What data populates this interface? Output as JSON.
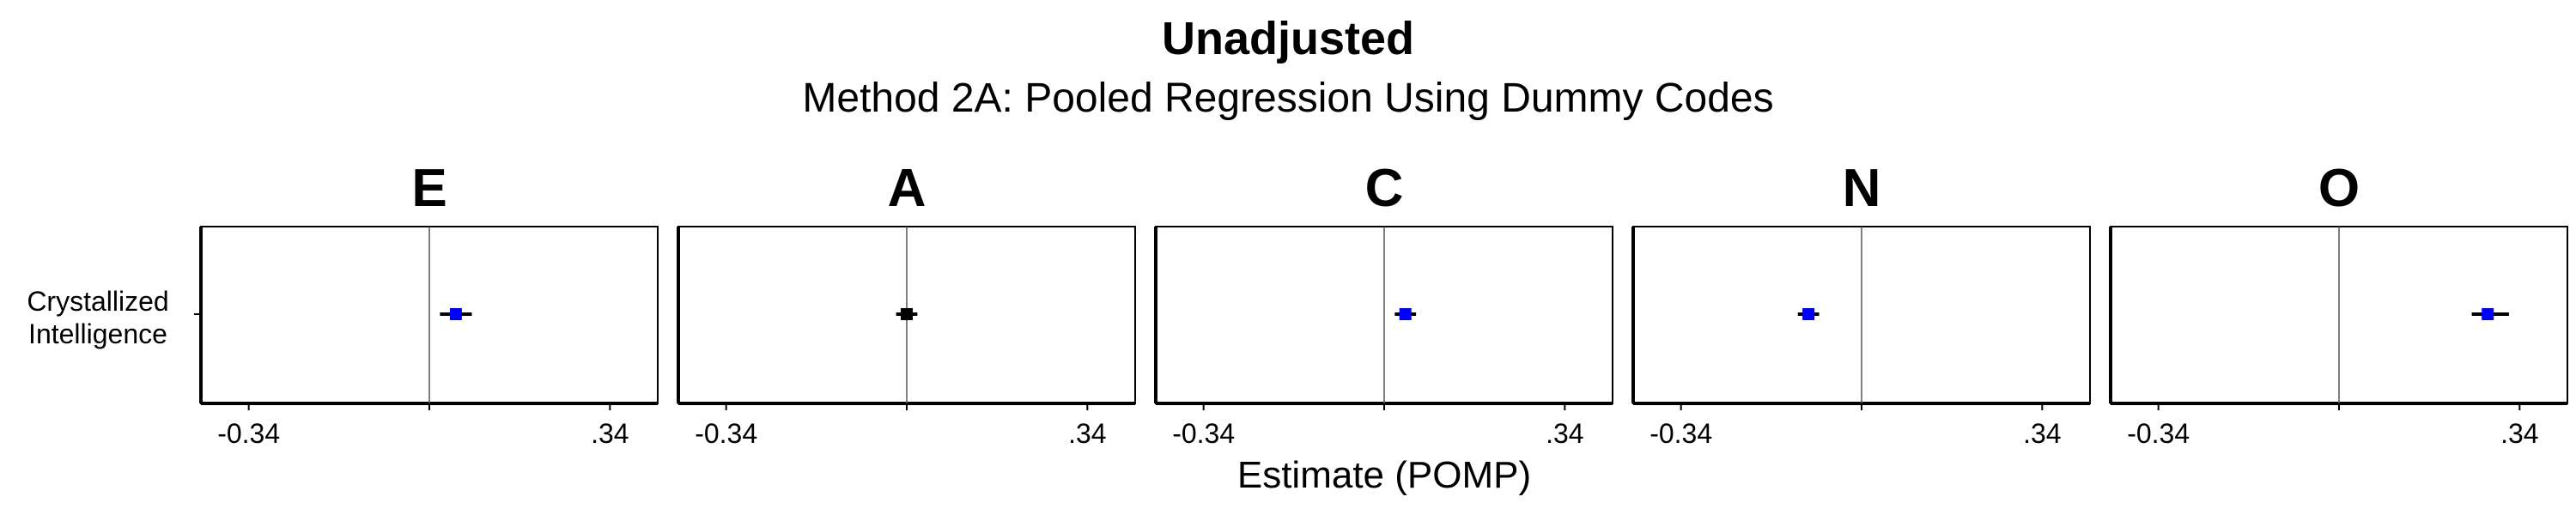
{
  "chart_data": {
    "type": "forest",
    "title": "Unadjusted",
    "subtitle": "Method 2A: Pooled Regression Using Dummy Codes",
    "xlabel": "Estimate (POMP)",
    "row_label": "Crystallized Intelligence",
    "xlim": [
      -0.43,
      0.43
    ],
    "reference_line": 0,
    "tick_values": [
      -0.34,
      0,
      0.34
    ],
    "tick_labels": [
      "-0.34",
      "",
      ".34"
    ],
    "series_colors": {
      "significant": "#0000ff",
      "nonsignificant": "#000000",
      "error_bar": "#000000"
    },
    "panels": [
      {
        "name": "E",
        "estimate": 0.05,
        "ci": [
          0.02,
          0.08
        ],
        "significant": true
      },
      {
        "name": "A",
        "estimate": 0.0,
        "ci": [
          -0.02,
          0.02
        ],
        "significant": false
      },
      {
        "name": "C",
        "estimate": 0.04,
        "ci": [
          0.02,
          0.06
        ],
        "significant": true
      },
      {
        "name": "N",
        "estimate": -0.1,
        "ci": [
          -0.12,
          -0.08
        ],
        "significant": true
      },
      {
        "name": "O",
        "estimate": 0.28,
        "ci": [
          0.25,
          0.32
        ],
        "significant": true
      }
    ],
    "grid": false
  }
}
